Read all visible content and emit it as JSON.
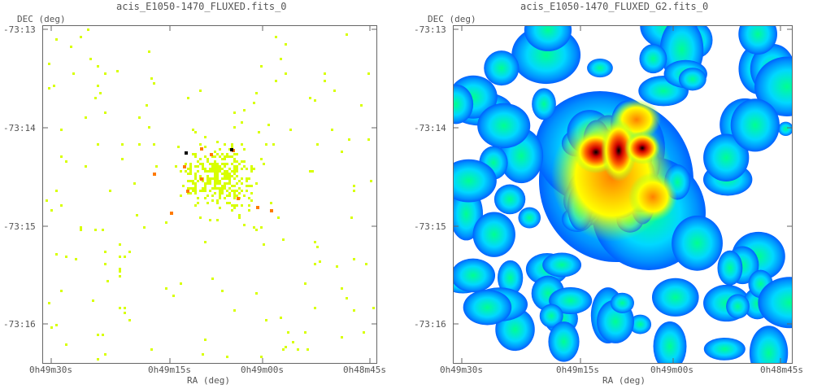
{
  "panels": [
    {
      "title": "acis_E1050-1470_FLUXED.fits_0",
      "y_axis_label": "DEC (deg)",
      "x_axis_label": "RA (deg)",
      "y_ticks": [
        "-73:13",
        "-73:14",
        "-73:15",
        "-73:16"
      ],
      "x_ticks": [
        "0h49m30s",
        "0h49m15s",
        "0h49m00s",
        "0h48m45s"
      ]
    },
    {
      "title": "acis_E1050-1470_FLUXED_G2.fits_0",
      "y_axis_label": "DEC (deg)",
      "x_axis_label": "RA (deg)",
      "y_ticks": [
        "-73:13",
        "-73:14",
        "-73:15",
        "-73:16"
      ],
      "x_ticks": [
        "0h49m30s",
        "0h49m15s",
        "0h49m00s",
        "0h48m45s"
      ]
    }
  ],
  "colors": {
    "sparse_pixel": "#d8ff00",
    "hot_pixel": "#ff7a00",
    "hottest_pixel": "#000000",
    "smooth_low": "#0080ff",
    "smooth_mid": "#00ff60",
    "smooth_high": "#ffff00",
    "smooth_peak": "#ff0000"
  }
}
